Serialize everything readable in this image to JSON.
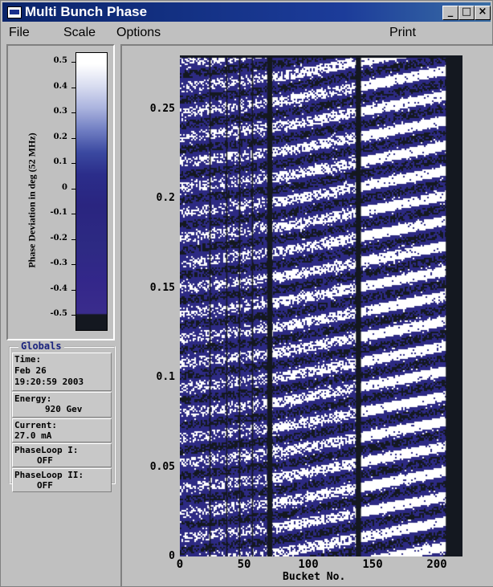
{
  "window": {
    "title": "Multi Bunch Phase",
    "controls": {
      "minimize": "_",
      "maximize": "□",
      "close": "×"
    }
  },
  "menu": {
    "items": [
      "File",
      "Scale",
      "Options",
      "Print"
    ]
  },
  "colorscale": {
    "axis_label": "Phase Deviation in deg (52 MHz)",
    "tick_labels": [
      "0.5",
      "0.4",
      "0.3",
      "0.2",
      "0.1",
      "0",
      "-0.1",
      "-0.2",
      "-0.3",
      "-0.4",
      "-0.5"
    ]
  },
  "globals": {
    "title": "Globals",
    "time_label": "Time:",
    "time_date": "Feb 26",
    "time_value": "19:20:59 2003",
    "energy_label": "Energy:",
    "energy_value": "920 Gev",
    "current_label": "Current:",
    "current_value": "27.0 mA",
    "phaseloop1_label": "PhaseLoop I:",
    "phaseloop1_value": "OFF",
    "phaseloop2_label": "PhaseLoop II:",
    "phaseloop2_value": "OFF"
  },
  "chart_data": {
    "type": "heatmap",
    "xlabel": "Bucket No.",
    "ylabel": "",
    "xlim": [
      0,
      220
    ],
    "ylim": [
      0,
      0.28
    ],
    "x_ticks": [
      "0",
      "50",
      "100",
      "150",
      "200"
    ],
    "y_ticks": [
      "0.25",
      "0.2",
      "0.15",
      "0.1",
      "0.05",
      "0"
    ],
    "colors": {
      "low": "#141820",
      "mid": "#2d2a83",
      "high": "#ffffff"
    }
  }
}
